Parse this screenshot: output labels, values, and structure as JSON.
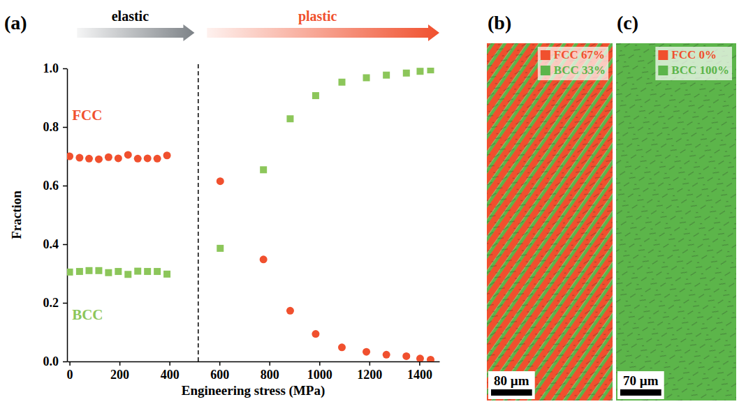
{
  "chart_data": {
    "type": "scatter",
    "panel_label": "(a)",
    "x_label": "Engineering stress (MPa)",
    "y_label": "Fraction",
    "x": [
      0,
      40,
      78,
      117,
      156,
      195,
      234,
      273,
      312,
      351,
      390,
      603,
      776,
      883,
      985,
      1090,
      1188,
      1268,
      1348,
      1403,
      1445
    ],
    "series": [
      {
        "name": "FCC",
        "color": "#f0502e",
        "marker": "circle",
        "label_at": [
          10,
          0.84
        ],
        "values": [
          0.7,
          0.695,
          0.692,
          0.69,
          0.697,
          0.693,
          0.705,
          0.692,
          0.693,
          0.692,
          0.703,
          0.615,
          0.348,
          0.173,
          0.094,
          0.048,
          0.033,
          0.023,
          0.018,
          0.01,
          0.006
        ]
      },
      {
        "name": "BCC",
        "color": "#8cc65a",
        "marker": "square",
        "label_at": [
          10,
          0.16
        ],
        "values": [
          0.305,
          0.307,
          0.31,
          0.31,
          0.303,
          0.307,
          0.297,
          0.308,
          0.307,
          0.307,
          0.298,
          0.386,
          0.654,
          0.828,
          0.907,
          0.953,
          0.968,
          0.977,
          0.984,
          0.99,
          0.995
        ]
      }
    ],
    "xlim": [
      -10,
      1480
    ],
    "xticks": [
      0,
      200,
      400,
      600,
      800,
      1000,
      1200,
      1400
    ],
    "ylim": [
      0,
      1.0
    ],
    "yticks": [
      {
        "value": 0,
        "label": "0.0"
      },
      0.2,
      0.4,
      0.6,
      0.8,
      {
        "value": 1.0,
        "label": "1.0"
      }
    ],
    "stages": [
      {
        "text": "elastic",
        "color": "#7d8287",
        "from": 30,
        "to": 500
      },
      {
        "text": "plastic",
        "color": "#f0502e",
        "from": 550,
        "to": 1480
      }
    ],
    "stage_boundary": 515
  },
  "micrographs": [
    {
      "panel_label": "(b)",
      "scale_bar": "80 µm",
      "phases": [
        {
          "label": "FCC 67%",
          "value": 67,
          "color": "#f0502e"
        },
        {
          "label": "BCC 33%",
          "value": 33,
          "color": "#5cb54a"
        }
      ]
    },
    {
      "panel_label": "(c)",
      "scale_bar": "70 µm",
      "phases": [
        {
          "label": "FCC 0%",
          "value": 0,
          "color": "#f0502e"
        },
        {
          "label": "BCC 100%",
          "value": 100,
          "color": "#5cb54a"
        }
      ]
    }
  ]
}
